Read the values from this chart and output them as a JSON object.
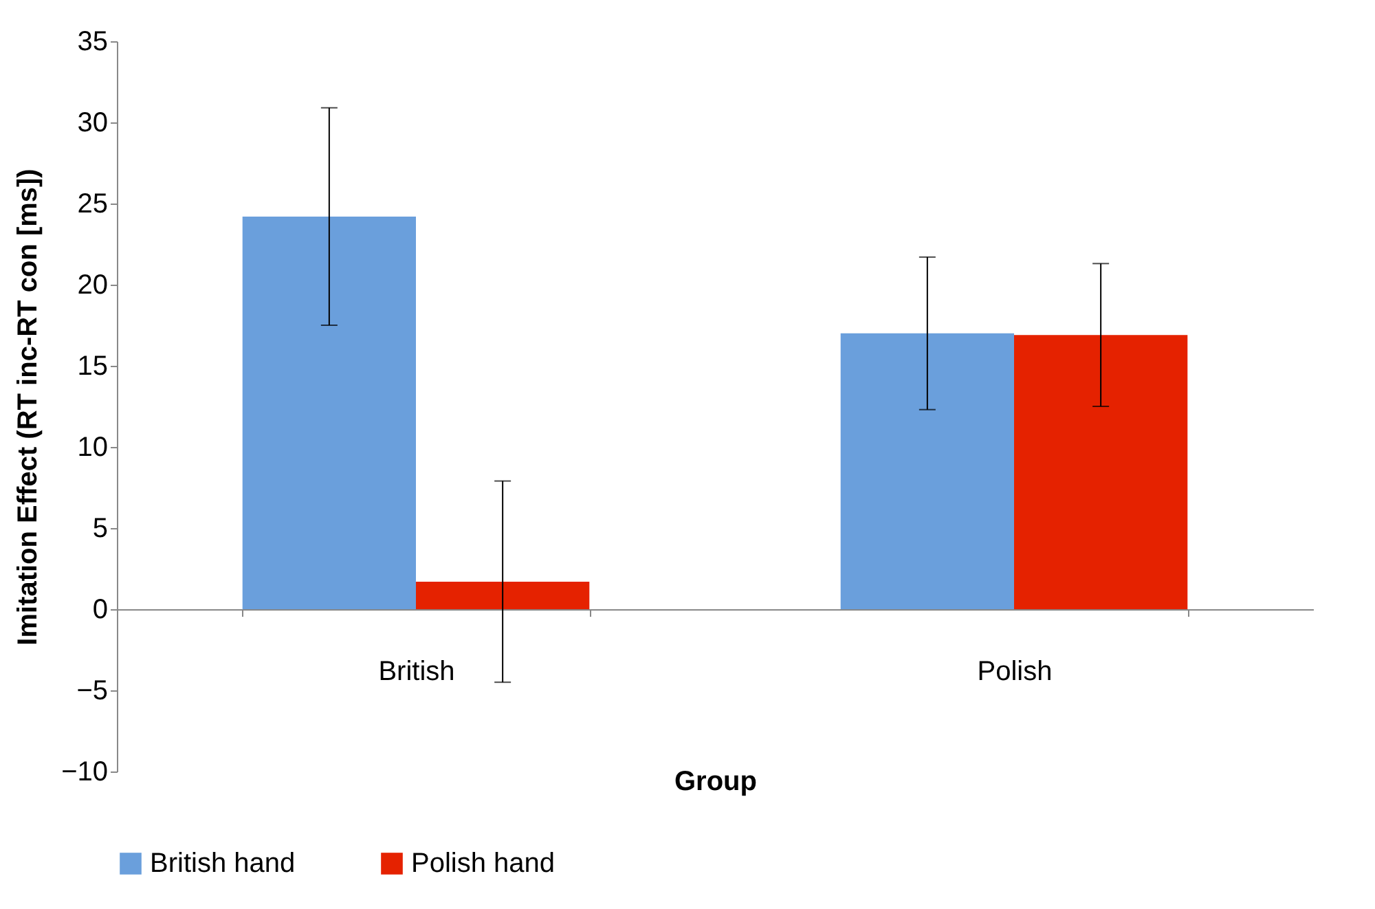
{
  "chart_data": {
    "type": "bar",
    "xlabel": "Group",
    "ylabel": "Imitation Effect (RT inc-RT con [ms])",
    "categories": [
      "British",
      "Polish"
    ],
    "series": [
      {
        "name": "British hand",
        "color": "#6a9fdc",
        "values": [
          24.2,
          17.0
        ],
        "errors": [
          6.7,
          4.7
        ]
      },
      {
        "name": "Polish hand",
        "color": "#e52200",
        "values": [
          1.7,
          16.9
        ],
        "errors": [
          6.2,
          4.4
        ]
      }
    ],
    "ylim": [
      -10,
      35
    ],
    "yticks": [
      -10,
      -5,
      0,
      5,
      10,
      15,
      20,
      25,
      30,
      35
    ],
    "grid": false,
    "legend": "bottom"
  }
}
